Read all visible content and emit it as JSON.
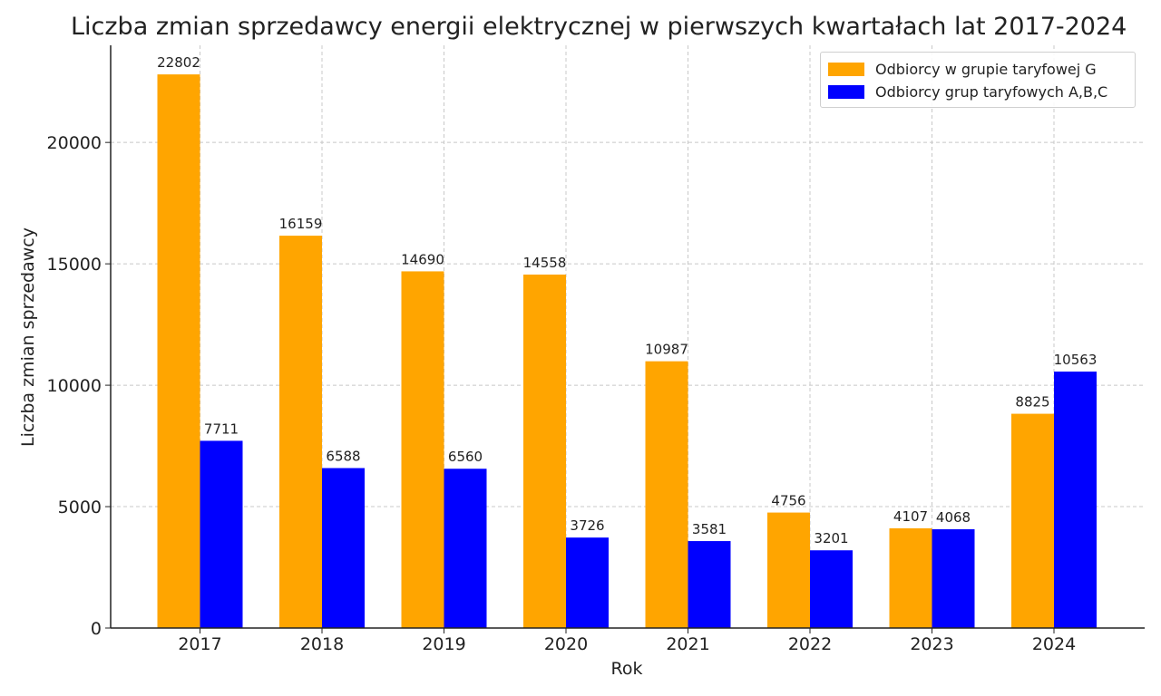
{
  "chart_data": {
    "type": "bar",
    "title": "Liczba zmian sprzedawcy energii elektrycznej w pierwszych kwartałach lat 2017-2024",
    "xlabel": "Rok",
    "ylabel": "Liczba zmian sprzedawcy",
    "categories": [
      "2017",
      "2018",
      "2019",
      "2020",
      "2021",
      "2022",
      "2023",
      "2024"
    ],
    "ylim": [
      0,
      24000
    ],
    "yticks": [
      0,
      5000,
      10000,
      15000,
      20000
    ],
    "grid": true,
    "legend_position": "top-right",
    "series": [
      {
        "name": "Odbiorcy w grupie taryfowej G",
        "color": "#FFA500",
        "values": [
          22802,
          16159,
          14690,
          14558,
          10987,
          4756,
          4107,
          8825
        ]
      },
      {
        "name": "Odbiorcy grup taryfowych A,B,C",
        "color": "#0000FF",
        "values": [
          7711,
          6588,
          6560,
          3726,
          3581,
          3201,
          4068,
          10563
        ]
      }
    ]
  }
}
